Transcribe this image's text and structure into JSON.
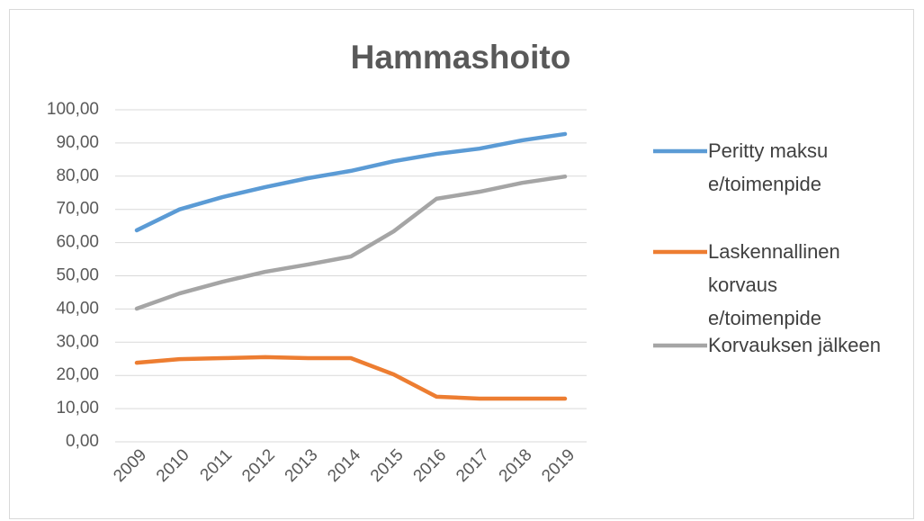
{
  "chart_data": {
    "type": "line",
    "title": "Hammashoito",
    "categories": [
      "2009",
      "2010",
      "2011",
      "2012",
      "2013",
      "2014",
      "2015",
      "2016",
      "2017",
      "2018",
      "2019"
    ],
    "series": [
      {
        "name": "Peritty maksu e/toimenpide",
        "color": "#5b9bd5",
        "values": [
          63.7,
          70,
          73.7,
          76.7,
          79.4,
          81.6,
          84.5,
          86.7,
          88.3,
          90.8,
          92.7
        ]
      },
      {
        "name": "Laskennallinen korvaus e/toimenpide",
        "color": "#ed7d31",
        "values": [
          23.8,
          24.9,
          25.2,
          25.5,
          25.2,
          25.2,
          20.3,
          13.6,
          13,
          13,
          13
        ]
      },
      {
        "name": "Korvauksen jälkeen",
        "color": "#a5a5a5",
        "values": [
          40.1,
          44.7,
          48.2,
          51.2,
          53.4,
          55.8,
          63.4,
          73.2,
          75.3,
          78,
          79.9
        ]
      }
    ],
    "ylim": [
      0,
      100
    ],
    "yticks": [
      {
        "value": 0,
        "label": "0,00"
      },
      {
        "value": 10,
        "label": "10,00"
      },
      {
        "value": 20,
        "label": "20,00"
      },
      {
        "value": 30,
        "label": "30,00"
      },
      {
        "value": 40,
        "label": "40,00"
      },
      {
        "value": 50,
        "label": "50,00"
      },
      {
        "value": 60,
        "label": "60,00"
      },
      {
        "value": 70,
        "label": "70,00"
      },
      {
        "value": 80,
        "label": "80,00"
      },
      {
        "value": 90,
        "label": "90,00"
      },
      {
        "value": 100,
        "label": "100,00"
      }
    ],
    "grid": true,
    "legend": "right"
  }
}
